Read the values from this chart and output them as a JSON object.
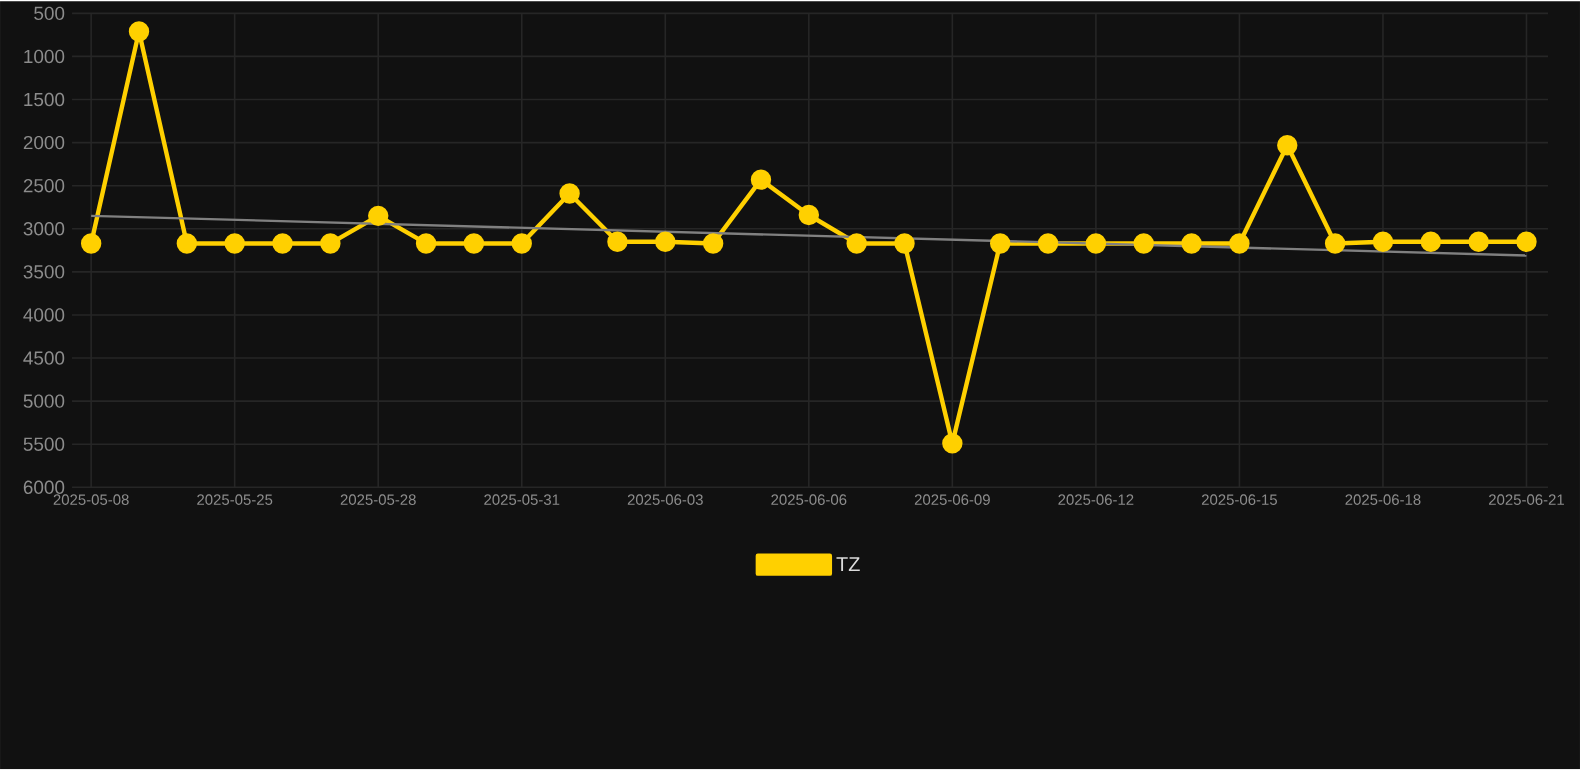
{
  "chart_data": {
    "type": "line",
    "categories": [
      "2025-05-08",
      null,
      null,
      "2025-05-25",
      null,
      null,
      "2025-05-28",
      null,
      null,
      "2025-05-31",
      null,
      null,
      "2025-06-03",
      null,
      null,
      "2025-06-06",
      null,
      null,
      "2025-06-09",
      null,
      null,
      "2025-06-12",
      null,
      null,
      "2025-06-15",
      null,
      null,
      "2025-06-18",
      null,
      null,
      "2025-06-21"
    ],
    "series": [
      {
        "name": "TZ",
        "color": "#ffd000",
        "values": [
          3170,
          710,
          3170,
          3170,
          3170,
          3170,
          2850,
          3170,
          3170,
          3170,
          2590,
          3150,
          3150,
          3170,
          2430,
          2840,
          3170,
          3170,
          5490,
          3170,
          3170,
          3170,
          3170,
          3170,
          3170,
          2030,
          3170,
          3150,
          3150,
          3150,
          3150
        ]
      },
      {
        "type": "line",
        "color": "#808080",
        "marker": "none",
        "values": [
          2850,
          null,
          null,
          null,
          null,
          null,
          null,
          null,
          null,
          null,
          null,
          null,
          null,
          null,
          null,
          null,
          null,
          null,
          null,
          null,
          null,
          null,
          null,
          null,
          null,
          null,
          null,
          null,
          null,
          null,
          3310
        ]
      }
    ],
    "ylim": [
      6000,
      500
    ],
    "yticks": [
      500,
      1000,
      1500,
      2000,
      2500,
      3000,
      3500,
      4000,
      4500,
      5000,
      5500,
      6000
    ],
    "grid": true,
    "legend": "bottom",
    "marker": "circle",
    "line_style": "solid"
  }
}
